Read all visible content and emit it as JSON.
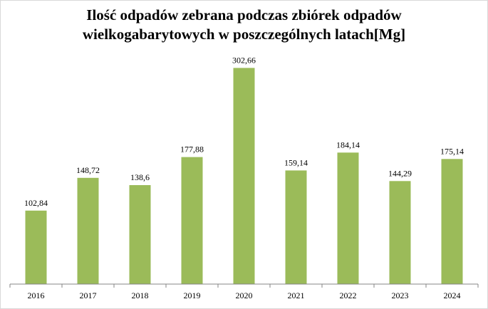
{
  "chart_data": {
    "type": "bar",
    "title_lines": [
      "Ilość odpadów zebrana podczas zbiórek odpadów",
      "wielkogabarytowych w poszczególnych latach[Mg]"
    ],
    "categories": [
      "2016",
      "2017",
      "2018",
      "2019",
      "2020",
      "2021",
      "2022",
      "2023",
      "2024"
    ],
    "values": [
      102.84,
      148.72,
      138.6,
      177.88,
      302.66,
      159.14,
      184.14,
      144.29,
      175.14
    ],
    "value_labels": [
      "102,84",
      "148,72",
      "138,6",
      "177,88",
      "302,66",
      "159,14",
      "184,14",
      "144,29",
      "175,14"
    ],
    "ylim": [
      0,
      330
    ],
    "grid": false,
    "legend": "none",
    "bar_color": "#9bbb59",
    "axis_color": "#868686"
  }
}
